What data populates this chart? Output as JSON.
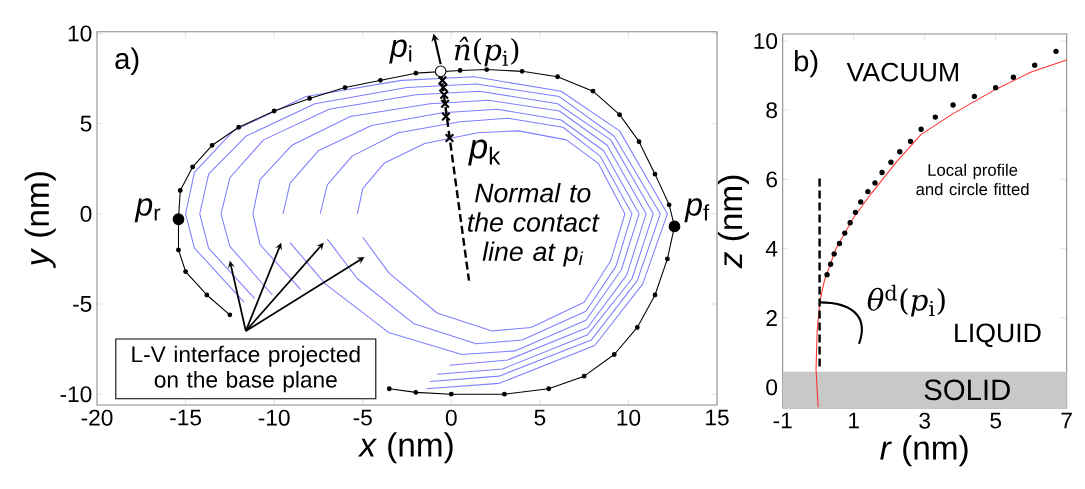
{
  "chart_data": [
    {
      "type": "line",
      "xlabel": "*x* (nm)",
      "ylabel": "*y* (nm)",
      "xlim": [
        -20,
        15
      ],
      "ylim": [
        -10.6,
        10.1
      ],
      "xticks": [
        -20,
        -15,
        -10,
        -5,
        0,
        5,
        10,
        15
      ],
      "yticks": [
        -10,
        -5,
        0,
        5,
        10
      ],
      "marker": "none",
      "line_style": "solid",
      "annotations": [
        "a)",
        "*p*$_{i}$",
        "*n̂*(*p*$_{i}$)",
        "*p*$_{r}$",
        "*p*$_{f}$",
        "*p*$_{k}$",
        "Normal to the contact line at p$_{i}$",
        "L-V interface projected on the base plane"
      ],
      "series": [
        {
          "color": "#7f7fff",
          "x": [
            -15,
            -14.5,
            -12.3,
            -8.2,
            -2.8,
            1.3,
            6.2,
            9.5,
            12.2,
            10.8,
            8.1,
            2.7,
            -1.4,
            null,
            -11.7,
            -14.5,
            -15
          ],
          "values": [
            0,
            2.3,
            4.6,
            6.5,
            7.4,
            7.6,
            6.8,
            4.6,
            0,
            -3.9,
            -7.3,
            -9.4,
            -9.7,
            null,
            -4.9,
            -1.9,
            0
          ]
        },
        {
          "color": "#7f7fff",
          "x": [
            -14.2,
            -13.7,
            -11.6,
            -7.7,
            -2.5,
            1.4,
            6.1,
            9.2,
            11.8,
            10.5,
            7.9,
            2.7,
            -1.2,
            null,
            -11.1,
            -13.7,
            -14.2
          ],
          "values": [
            0,
            2.2,
            4.3,
            6.1,
            7.0,
            7.2,
            6.5,
            4.3,
            0,
            -3.7,
            -7.0,
            -9.0,
            -9.3,
            null,
            -4.7,
            -1.9,
            0
          ]
        },
        {
          "color": "#7f7fff",
          "x": [
            -13,
            -12.5,
            -10.6,
            -6.9,
            -2.0,
            1.6,
            6.0,
            9.0,
            11.4,
            10.2,
            7.7,
            2.9,
            -0.8,
            null,
            -10.1,
            -12.5,
            -13
          ],
          "values": [
            0,
            2.0,
            4.1,
            5.8,
            6.6,
            6.8,
            6.1,
            4.1,
            0,
            -3.6,
            -6.7,
            -8.6,
            -8.9,
            null,
            -4.5,
            -1.8,
            0
          ]
        },
        {
          "color": "#7f7fff",
          "x": [
            -11.2,
            -10.8,
            -9.0,
            -5.7,
            -1.2,
            2.1,
            6.1,
            8.8,
            11.0,
            9.9,
            7.7,
            3.2,
            -0.1,
            null,
            -8.5,
            -10.8,
            -11.2
          ],
          "values": [
            0,
            1.9,
            3.8,
            5.4,
            6.1,
            6.3,
            5.7,
            3.8,
            0,
            -3.4,
            -6.3,
            -8.1,
            -8.4,
            null,
            -4.2,
            -1.7,
            0
          ]
        },
        {
          "color": "#7f7fff",
          "x": [
            -9.5,
            -9.1,
            -7.5,
            -4.5,
            -0.5,
            2.6,
            6.2,
            8.6,
            10.6,
            9.6,
            7.6,
            3.6,
            0.6,
            -3.5,
            -7.1,
            -9.1
          ],
          "values": [
            0,
            1.7,
            3.5,
            4.9,
            5.6,
            5.8,
            5.2,
            3.5,
            0,
            -3.1,
            -5.9,
            -7.6,
            -7.8,
            -6.6,
            -3.9,
            -1.6
          ]
        },
        {
          "color": "#7f7fff",
          "x": [
            -7.4,
            -7.0,
            -5.6,
            -3.0,
            0.5,
            3.2,
            6.3,
            8.4,
            10.2,
            9.3,
            7.6,
            4.0,
            1.4,
            -2.1,
            -5.3,
            -7.0
          ],
          "values": [
            0,
            1.6,
            3.2,
            4.5,
            5.1,
            5.3,
            4.8,
            3.2,
            0,
            -2.9,
            -5.4,
            -7.0,
            -7.2,
            -6.1,
            -3.6,
            -1.4
          ]
        },
        {
          "color": "#7f7fff",
          "x": [
            -5.3,
            -5.0,
            -3.8,
            -1.5,
            1.5,
            3.8,
            6.5,
            8.3,
            9.8,
            9.0,
            7.5,
            4.5,
            2.3,
            -0.8,
            -3.5,
            -5.0
          ],
          "values": [
            0,
            1.4,
            2.8,
            3.9,
            4.5,
            4.6,
            4.1,
            2.8,
            0,
            -2.6,
            -4.9,
            -6.3,
            -6.5,
            -5.5,
            -3.3,
            -1.3
          ]
        },
        {
          "color": "#000000",
          "marker": "circle",
          "x": [
            -15.4,
            -15.3,
            -14.6,
            -13.5,
            -12,
            -10,
            -8,
            -6,
            -4,
            -2,
            0.5,
            2,
            4,
            6,
            8,
            9.5,
            10.6,
            11.5,
            12.3,
            12.6,
            12.2,
            11.5,
            10.5,
            9.2,
            7.5,
            5.5,
            3,
            0,
            -2,
            -3.5,
            null,
            -12.5,
            -13.8,
            -15,
            -15.4,
            -15.4
          ],
          "values": [
            -0.3,
            1.3,
            2.6,
            3.8,
            4.8,
            5.7,
            6.4,
            7,
            7.4,
            7.8,
            7.95,
            8,
            7.9,
            7.6,
            6.8,
            5.5,
            4,
            2.2,
            0.5,
            -0.7,
            -2.5,
            -4.5,
            -6.3,
            -7.8,
            -9,
            -9.7,
            -10,
            -10,
            -9.9,
            -9.7,
            null,
            -5.6,
            -4.5,
            -3.2,
            -2,
            -0.3
          ]
        },
        {
          "color": "#000000",
          "line_style": "dashed",
          "x": [
            -0.6,
            1.0
          ],
          "values": [
            7.9,
            -3.7
          ]
        },
        {
          "type": "scatter",
          "marker": "cross",
          "color": "#000000",
          "x": [
            -0.5,
            -0.45,
            -0.4,
            -0.35,
            -0.3,
            -0.1
          ],
          "values": [
            7.4,
            7.0,
            6.6,
            6.1,
            5.4,
            4.2
          ]
        },
        {
          "type": "scatter",
          "marker": "circle",
          "color": "#000000",
          "x": [
            -15.4,
            12.6
          ],
          "values": [
            -0.3,
            -0.7
          ]
        },
        {
          "type": "scatter",
          "marker": "circle",
          "color": "#ffffff",
          "x": [
            -0.6
          ],
          "values": [
            7.9
          ]
        }
      ]
    },
    {
      "type": "line",
      "xlabel": "*r* (nm)",
      "ylabel": "*z* (nm)",
      "xlim": [
        -1,
        7
      ],
      "ylim": [
        -0.6,
        10.2
      ],
      "xticks": [
        -1,
        1,
        3,
        5,
        7
      ],
      "yticks": [
        0,
        2,
        4,
        6,
        8,
        10
      ],
      "marker": "none",
      "line_style": "solid",
      "bands": [
        {
          "axis": "y",
          "from": -0.6,
          "to": 0.45,
          "label": "SOLID",
          "color": "#c8c8c8"
        }
      ],
      "annotations": [
        "b)",
        "VACUUM",
        "Local profile and circle fitted",
        {
          "text": "*θ*$^{d}$(*p*$_{i}$)",
          "x": 0.05,
          "y": 2.45
        },
        "LIQUID"
      ],
      "series": [
        {
          "color": "#ff3030",
          "x": [
            0,
            -0.06,
            -0.03,
            0.05,
            0.18,
            0.5,
            1,
            1.5,
            2.2,
            2.9,
            3.8,
            5,
            6,
            7
          ],
          "values": [
            -0.58,
            0.5,
            1.6,
            2.5,
            3.1,
            4,
            4.9,
            5.6,
            6.5,
            7.3,
            7.9,
            8.6,
            9.1,
            9.45
          ]
        },
        {
          "type": "scatter",
          "marker": "circle",
          "color": "#000000",
          "x": [
            6.7,
            6.1,
            5.5,
            5.0,
            4.4,
            3.8,
            3.3,
            2.9,
            2.6,
            2.3,
            2.05,
            1.8,
            1.6,
            1.4,
            1.2,
            1.05,
            0.9,
            0.75,
            0.6,
            0.45,
            0.35,
            0.25
          ],
          "values": [
            9.7,
            9.3,
            8.95,
            8.65,
            8.4,
            8.15,
            7.8,
            7.45,
            7.1,
            6.8,
            6.5,
            6.2,
            5.9,
            5.65,
            5.35,
            5.05,
            4.75,
            4.45,
            4.15,
            3.85,
            3.55,
            3.25
          ]
        },
        {
          "color": "#000000",
          "line_style": "dashed",
          "x": [
            0.04,
            0.04
          ],
          "values": [
            0.6,
            6.1
          ]
        }
      ]
    }
  ]
}
